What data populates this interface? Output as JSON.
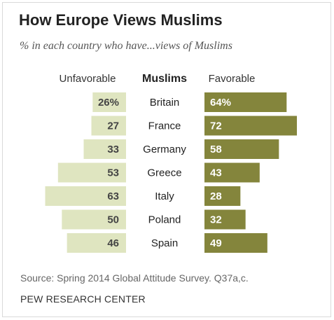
{
  "chart_data": {
    "type": "bar",
    "title": "How Europe Views Muslims",
    "subtitle": "% in each country who have...views of Muslims",
    "center_header": "Muslims",
    "categories": [
      "Britain",
      "France",
      "Germany",
      "Greece",
      "Italy",
      "Poland",
      "Spain"
    ],
    "series": [
      {
        "name": "Unfavorable",
        "values": [
          26,
          27,
          33,
          53,
          63,
          50,
          46
        ],
        "labels": [
          "26%",
          "27",
          "33",
          "53",
          "63",
          "50",
          "46"
        ],
        "color": "#dfe5c0",
        "label_color": "#444444"
      },
      {
        "name": "Favorable",
        "values": [
          64,
          72,
          58,
          43,
          28,
          32,
          49
        ],
        "labels": [
          "64%",
          "72",
          "58",
          "43",
          "28",
          "32",
          "49"
        ],
        "color": "#84853c",
        "label_color": "#ffffff"
      }
    ],
    "xlim": [
      0,
      72
    ],
    "grid": false,
    "legend": "top"
  },
  "footer": {
    "source": "Source: Spring 2014 Global Attitude Survey. Q37a,c.",
    "credit": "PEW RESEARCH CENTER"
  }
}
